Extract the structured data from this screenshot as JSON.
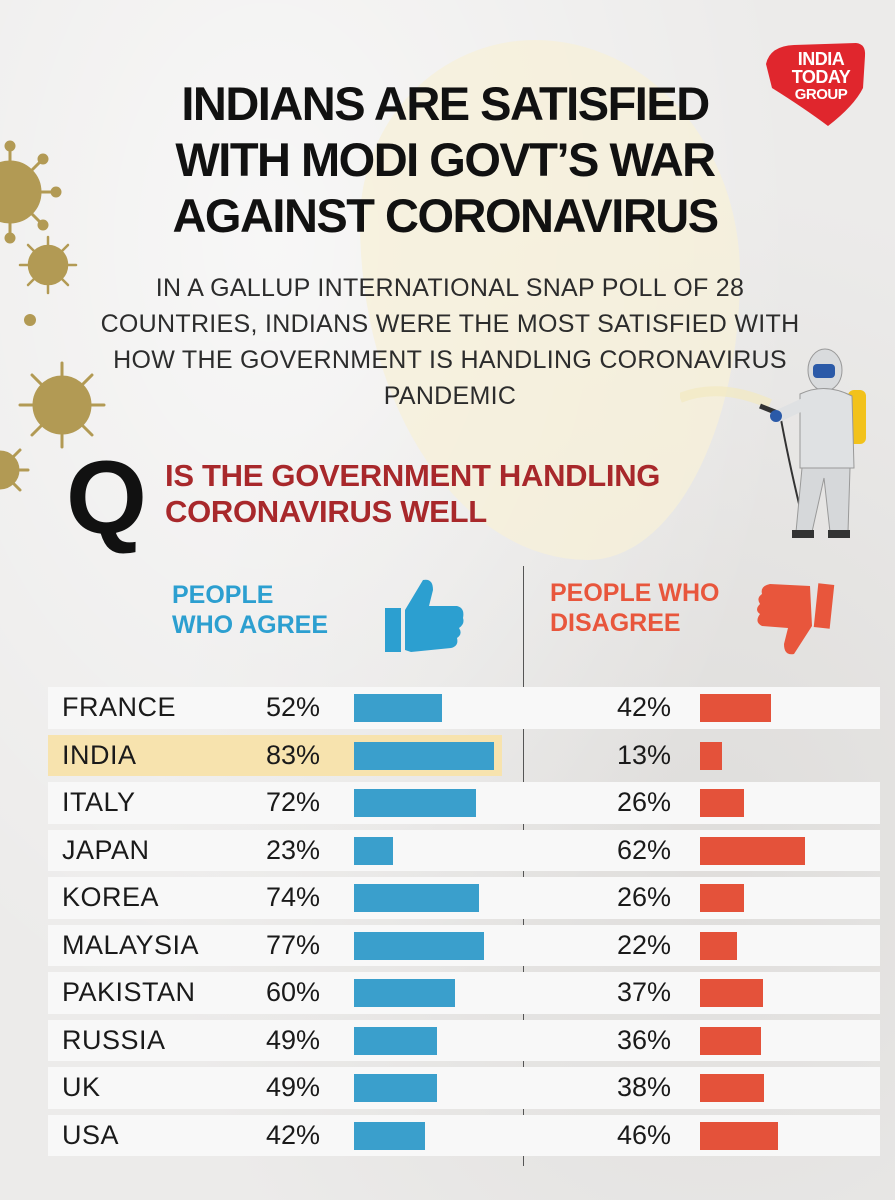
{
  "title": "INDIANS ARE SATISFIED WITH MODI GOVT’S WAR AGAINST CORONAVIRUS",
  "subtitle": "IN A GALLUP INTERNATIONAL SNAP POLL OF 28 COUNTRIES, INDIANS WERE THE MOST SATISFIED WITH HOW THE GOVERNMENT IS HANDLING CORONAVIRUS PANDEMIC",
  "logo": {
    "line1": "INDIA",
    "line2": "TODAY",
    "line3": "GROUP",
    "color": "#e0262d"
  },
  "question": {
    "letter": "Q",
    "line1": "IS THE GOVERNMENT HANDLING",
    "line2": "CORONAVIRUS WELL"
  },
  "legend": {
    "agree_line1": "PEOPLE",
    "agree_line2": "WHO AGREE",
    "disagree_line1": "PEOPLE WHO",
    "disagree_line2": "DISAGREE"
  },
  "colors": {
    "agree": "#3a9fcc",
    "disagree": "#e4523a",
    "highlight": "#f7e3ae",
    "question": "#a8282b"
  },
  "icons": [
    "thumbs-up-icon",
    "thumbs-down-icon",
    "virus-icon",
    "sanitizer-worker-icon"
  ],
  "chart_data": {
    "type": "bar",
    "categories": [
      "FRANCE",
      "INDIA",
      "ITALY",
      "JAPAN",
      "KOREA",
      "MALAYSIA",
      "PAKISTAN",
      "RUSSIA",
      "UK",
      "USA"
    ],
    "series": [
      {
        "name": "PEOPLE WHO AGREE",
        "values": [
          52,
          83,
          72,
          23,
          74,
          77,
          60,
          49,
          49,
          42
        ],
        "labels": [
          "52%",
          "83%",
          "72%",
          "23%",
          "74%",
          "77%",
          "60%",
          "49%",
          "49%",
          "42%"
        ]
      },
      {
        "name": "PEOPLE WHO DISAGREE",
        "values": [
          42,
          13,
          26,
          62,
          26,
          22,
          37,
          36,
          38,
          46
        ],
        "labels": [
          "42%",
          "13%",
          "26%",
          "62%",
          "26%",
          "22%",
          "37%",
          "36%",
          "38%",
          "46%"
        ]
      }
    ],
    "highlight_category": "INDIA",
    "xlim": [
      0,
      100
    ]
  }
}
